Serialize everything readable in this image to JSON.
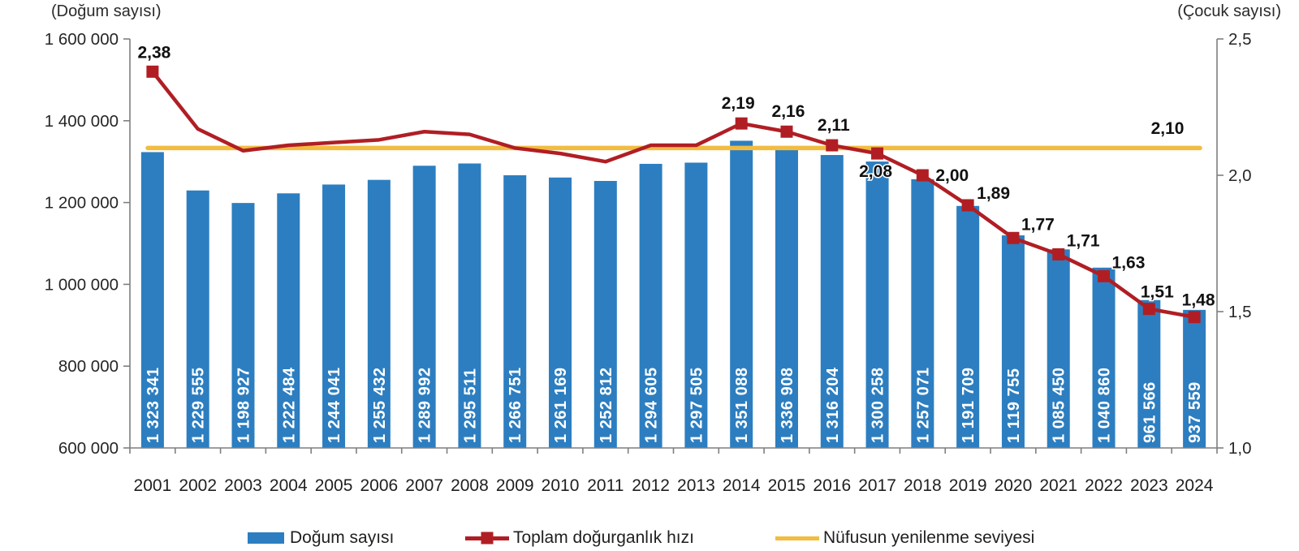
{
  "chart_data": {
    "type": "bar",
    "combo": "bar+line, dual axis",
    "x_years": [
      "2001",
      "2002",
      "2003",
      "2004",
      "2005",
      "2006",
      "2007",
      "2008",
      "2009",
      "2010",
      "2011",
      "2012",
      "2013",
      "2014",
      "2015",
      "2016",
      "2017",
      "2018",
      "2019",
      "2020",
      "2021",
      "2022",
      "2023",
      "2024"
    ],
    "left_axis": {
      "title": "(Doğum sayısı)",
      "min": 600000,
      "max": 1600000,
      "tick_values": [
        1600000,
        1400000,
        1200000,
        1000000,
        800000,
        600000
      ],
      "tick_labels": [
        "1 600 000",
        "1 400 000",
        "1 200 000",
        "1 000 000",
        "800 000",
        "600 000"
      ]
    },
    "right_axis": {
      "title": "(Çocuk sayısı)",
      "min": 1.0,
      "max": 2.5,
      "tick_values": [
        2.5,
        2.0,
        1.5,
        1.0
      ],
      "tick_labels": [
        "2,5",
        "2,0",
        "1,5",
        "1,0"
      ]
    },
    "series": [
      {
        "name": "Doğum sayısı",
        "type": "bar",
        "axis": "left",
        "color": "#2C7EC0",
        "values": [
          1323341,
          1229555,
          1198927,
          1222484,
          1244041,
          1255432,
          1289992,
          1295511,
          1266751,
          1261169,
          1252812,
          1294605,
          1297505,
          1351088,
          1336908,
          1316204,
          1300258,
          1257071,
          1191709,
          1119755,
          1085450,
          1040860,
          961566,
          937559
        ],
        "value_labels": [
          "1 323 341",
          "1 229 555",
          "1 198 927",
          "1 222 484",
          "1 244 041",
          "1 255 432",
          "1 289 992",
          "1 295 511",
          "1 266 751",
          "1 261 169",
          "1 252 812",
          "1 294 605",
          "1 297 505",
          "1 351 088",
          "1 336 908",
          "1 316 204",
          "1 300 258",
          "1 257 071",
          "1 191 709",
          "1 119 755",
          "1 085 450",
          "1 040 860",
          "961 566",
          "937 559"
        ]
      },
      {
        "name": "Toplam doğurganlık hızı",
        "type": "line",
        "axis": "right",
        "color": "#B01E24",
        "values": [
          2.38,
          2.17,
          2.09,
          2.11,
          2.12,
          2.13,
          2.16,
          2.15,
          2.1,
          2.08,
          2.05,
          2.11,
          2.11,
          2.19,
          2.16,
          2.11,
          2.08,
          2.0,
          1.89,
          1.77,
          1.71,
          1.63,
          1.51,
          1.48
        ],
        "point_labels": [
          "2,38",
          null,
          null,
          null,
          null,
          null,
          null,
          null,
          null,
          null,
          null,
          null,
          null,
          "2,19",
          "2,16",
          "2,11",
          "2,08",
          "2,00",
          "1,89",
          "1,77",
          "1,71",
          "1,63",
          "1,51",
          "1,48"
        ]
      },
      {
        "name": "Nüfusun yenilenme seviyesi",
        "type": "reference-line",
        "axis": "right",
        "color": "#F2BC40",
        "value": 2.1,
        "label": "2,10"
      }
    ],
    "legend": [
      "Doğum sayısı",
      "Toplam doğurganlık hızı",
      "Nüfusun yenilenme seviyesi"
    ],
    "layout_hints": {
      "grid": "off",
      "legend_position": "bottom",
      "bar_labels_rotated": true
    }
  }
}
